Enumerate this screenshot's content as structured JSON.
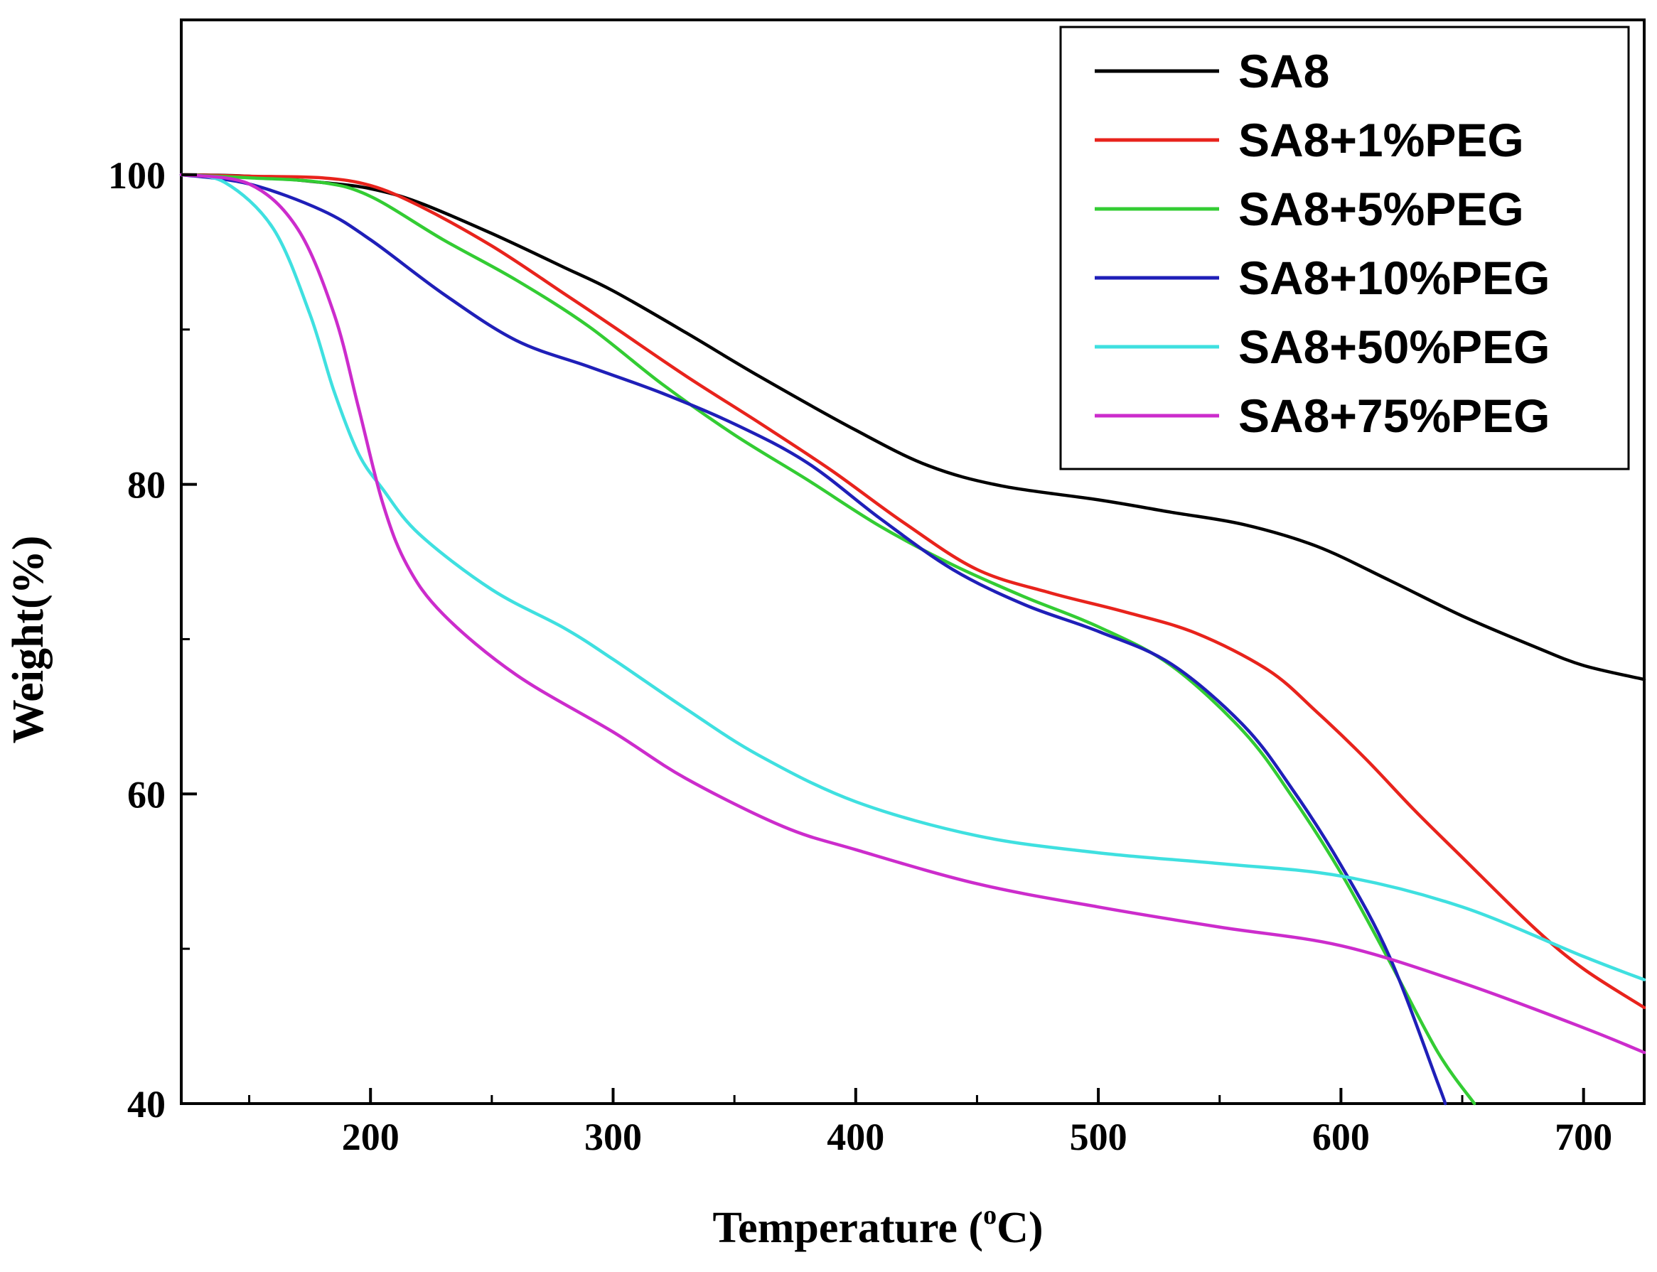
{
  "chart_data": {
    "type": "line",
    "title": "",
    "xlabel": "Temperature (",
    "xlabel_sup": "o",
    "xlabel_tail": "C)",
    "ylabel": "Weight(%)",
    "xlim": [
      122,
      725
    ],
    "ylim": [
      40,
      110
    ],
    "x_ticks": [
      200,
      300,
      400,
      500,
      600,
      700
    ],
    "x_tick_labels": [
      "200",
      "300",
      "400",
      "500",
      "600",
      "700"
    ],
    "x_minor_ticks": [
      150,
      250,
      350,
      450,
      550,
      650
    ],
    "y_ticks": [
      40,
      60,
      80,
      100
    ],
    "y_tick_labels": [
      "40",
      "60",
      "80",
      "100"
    ],
    "y_minor_ticks": [
      50,
      70,
      90
    ],
    "legend_position": "top-right",
    "series": [
      {
        "name": "SA8",
        "color": "#000000",
        "x": [
          122,
          150,
          180,
          200,
          220,
          250,
          280,
          300,
          330,
          360,
          400,
          430,
          460,
          500,
          530,
          560,
          590,
          620,
          650,
          680,
          700,
          725
        ],
        "y": [
          100,
          99.9,
          99.5,
          99.1,
          98.2,
          96.2,
          94.0,
          92.5,
          89.8,
          87.0,
          83.5,
          81.2,
          79.9,
          79.0,
          78.2,
          77.4,
          76.0,
          73.8,
          71.5,
          69.5,
          68.3,
          67.4
        ]
      },
      {
        "name": "SA8+1%PEG",
        "color": "#e8231c",
        "x": [
          122,
          150,
          180,
          200,
          220,
          250,
          280,
          300,
          330,
          360,
          390,
          420,
          450,
          480,
          510,
          540,
          570,
          590,
          610,
          630,
          650,
          680,
          700,
          725
        ],
        "y": [
          100,
          99.9,
          99.8,
          99.3,
          98.0,
          95.4,
          92.3,
          90.2,
          87.0,
          84.0,
          80.9,
          77.5,
          74.5,
          73.0,
          71.8,
          70.4,
          68.0,
          65.3,
          62.3,
          59.0,
          55.9,
          51.3,
          48.7,
          46.2
        ]
      },
      {
        "name": "SA8+5%PEG",
        "color": "#33cc33",
        "x": [
          122,
          150,
          180,
          200,
          230,
          260,
          290,
          320,
          350,
          380,
          410,
          440,
          470,
          500,
          530,
          560,
          580,
          600,
          620,
          640,
          655
        ],
        "y": [
          100,
          99.8,
          99.5,
          98.6,
          95.8,
          93.2,
          90.2,
          86.5,
          83.2,
          80.3,
          77.3,
          74.8,
          72.7,
          70.8,
          68.3,
          64.0,
          59.8,
          54.9,
          49.2,
          43.3,
          40.0
        ]
      },
      {
        "name": "SA8+10%PEG",
        "color": "#1f1fb8",
        "x": [
          122,
          150,
          180,
          200,
          230,
          260,
          290,
          320,
          350,
          380,
          410,
          440,
          470,
          500,
          530,
          560,
          580,
          600,
          620,
          640,
          643
        ],
        "y": [
          100,
          99.4,
          97.7,
          95.8,
          92.3,
          89.3,
          87.6,
          85.9,
          83.9,
          81.4,
          77.8,
          74.5,
          72.2,
          70.5,
          68.4,
          64.4,
          60.3,
          55.4,
          49.5,
          41.3,
          40.0
        ]
      },
      {
        "name": "SA8+50%PEG",
        "color": "#3fe0e0",
        "x": [
          122,
          140,
          160,
          175,
          185,
          195,
          205,
          220,
          250,
          280,
          300,
          330,
          360,
          400,
          450,
          500,
          550,
          600,
          650,
          700,
          725
        ],
        "y": [
          100,
          99.5,
          96.5,
          91.0,
          86.0,
          82.0,
          79.7,
          76.8,
          73.2,
          70.7,
          68.7,
          65.5,
          62.5,
          59.5,
          57.3,
          56.2,
          55.5,
          54.7,
          52.7,
          49.5,
          48.0
        ]
      },
      {
        "name": "SA8+75%PEG",
        "color": "#cc2ccc",
        "x": [
          122,
          150,
          170,
          185,
          195,
          205,
          215,
          230,
          260,
          300,
          330,
          370,
          400,
          450,
          500,
          550,
          600,
          650,
          700,
          725
        ],
        "y": [
          100,
          99.4,
          96.5,
          91.0,
          85.0,
          78.8,
          74.8,
          71.6,
          67.7,
          64.0,
          61.0,
          57.9,
          56.4,
          54.2,
          52.7,
          51.4,
          50.2,
          47.8,
          44.9,
          43.3
        ]
      }
    ]
  }
}
